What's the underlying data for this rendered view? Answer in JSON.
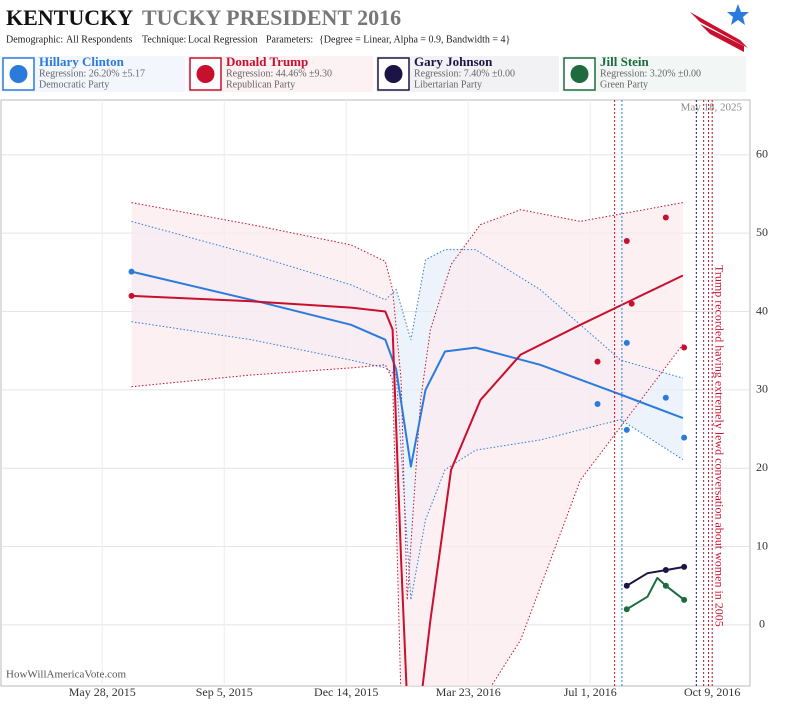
{
  "header": {
    "title_bold": "KENTUCKY",
    "title_rest": "TUCKY PRESIDENT 2016",
    "params": [
      {
        "label": "Demographic:",
        "value": "All Respondents"
      },
      {
        "label": "Technique:",
        "value": "Local Regression"
      },
      {
        "label": "Parameters:",
        "value": "{Degree = Linear, Alpha = 0.9, Bandwidth = 4}"
      }
    ]
  },
  "date_stamp": "May 18, 2025",
  "footer": "HowWillAmericaVote.com",
  "chart_data": {
    "type": "line",
    "xlim": [
      "2015-03-06",
      "2016-11-09"
    ],
    "xticks": [
      {
        "value": "2015-05-28",
        "label": "May 28, 2015"
      },
      {
        "value": "2015-09-05",
        "label": "Sep 5, 2015"
      },
      {
        "value": "2015-12-14",
        "label": "Dec 14, 2015"
      },
      {
        "value": "2016-03-23",
        "label": "Mar 23, 2016"
      },
      {
        "value": "2016-07-01",
        "label": "Jul 1, 2016"
      },
      {
        "value": "2016-10-09",
        "label": "Oct 9, 2016"
      }
    ],
    "ylim": [
      -7.8,
      67
    ],
    "yticks": [
      0,
      10,
      20,
      30,
      40,
      50,
      60
    ],
    "grid": true,
    "series": [
      {
        "name": "Hillary Clinton",
        "regression": "Regression: 26.20% ±5.17",
        "party": "Democratic Party",
        "color": "#2b7bdc",
        "band_color": "#e6eef9",
        "x": [
          "2015-06-21",
          "2015-09-27",
          "2015-12-18",
          "2016-01-15",
          "2016-01-24",
          "2016-02-05",
          "2016-02-17",
          "2016-03-04",
          "2016-03-29",
          "2016-05-21",
          "2016-07-26",
          "2016-09-15"
        ],
        "values": [
          45.1,
          41.5,
          38.3,
          36.4,
          32.6,
          20.2,
          30.0,
          34.9,
          35.4,
          33.2,
          29.4,
          26.4
        ],
        "upper": [
          51.5,
          47.3,
          43.4,
          41.5,
          42.8,
          36.4,
          46.6,
          47.9,
          47.9,
          42.8,
          33.8,
          31.5
        ],
        "lower": [
          38.7,
          36.4,
          33.8,
          32.8,
          31.9,
          3.2,
          13.4,
          19.8,
          22.3,
          23.6,
          26.2,
          21.1
        ],
        "polls": {
          "x": [
            "2015-06-21",
            "2016-07-07",
            "2016-07-31",
            "2016-07-31",
            "2016-09-01",
            "2016-09-16"
          ],
          "values": [
            45.1,
            28.2,
            24.9,
            36.0,
            29.0,
            23.9
          ]
        }
      },
      {
        "name": "Donald Trump",
        "regression": "Regression: 44.46% ±9.30",
        "party": "Republican Party",
        "color": "#c8102e",
        "band_color": "#fbe9ee",
        "x": [
          "2015-06-21",
          "2015-09-27",
          "2015-12-18",
          "2016-01-15",
          "2016-01-21",
          "2016-01-28",
          "2016-02-02",
          "2016-02-13",
          "2016-02-21",
          "2016-03-09",
          "2016-04-02",
          "2016-05-05",
          "2016-06-23",
          "2016-09-15"
        ],
        "values": [
          42.0,
          41.3,
          40.5,
          40.0,
          37.7,
          8.3,
          -10,
          -10,
          0.6,
          19.8,
          28.7,
          34.5,
          38.3,
          44.6
        ],
        "upper": [
          53.9,
          51.1,
          48.5,
          46.4,
          42.8,
          31.3,
          3.2,
          28.7,
          37.7,
          46.0,
          51.1,
          53.0,
          51.5,
          53.9
        ],
        "lower": [
          30.4,
          31.9,
          32.8,
          33.2,
          31.3,
          -10,
          -10,
          -10,
          -10,
          -10,
          -10,
          -1.9,
          18.5,
          35.8
        ],
        "polls": {
          "x": [
            "2015-06-21",
            "2016-07-07",
            "2016-07-31",
            "2016-08-04",
            "2016-09-01",
            "2016-09-16"
          ],
          "values": [
            42.0,
            33.6,
            49.0,
            41.0,
            52.0,
            35.4
          ]
        }
      },
      {
        "name": "Gary Johnson",
        "regression": "Regression: 7.40% ±0.00",
        "party": "Libertarian Party",
        "color": "#1c1446",
        "x": [
          "2016-07-31",
          "2016-08-17",
          "2016-09-01",
          "2016-09-16"
        ],
        "values": [
          5.0,
          6.6,
          7.0,
          7.4
        ],
        "polls": {
          "x": [
            "2016-07-31",
            "2016-09-01",
            "2016-09-16"
          ],
          "values": [
            5.0,
            7.0,
            7.4
          ]
        }
      },
      {
        "name": "Jill Stein",
        "regression": "Regression: 3.20% ±0.00",
        "party": "Green Party",
        "color": "#1e6b3f",
        "x": [
          "2016-07-31",
          "2016-08-17",
          "2016-08-25",
          "2016-09-01",
          "2016-09-16"
        ],
        "values": [
          2.0,
          3.6,
          6.0,
          5.0,
          3.2
        ],
        "polls": {
          "x": [
            "2016-07-31",
            "2016-09-01",
            "2016-09-16"
          ],
          "values": [
            2.0,
            5.0,
            3.2
          ]
        }
      }
    ],
    "events": [
      {
        "x": "2016-07-21",
        "color": "#c8102e"
      },
      {
        "x": "2016-07-27",
        "color": "#2b7bdc"
      },
      {
        "x": "2016-09-26",
        "color": "#1c1446"
      },
      {
        "x": "2016-10-02",
        "color": "#c8102e"
      },
      {
        "x": "2016-10-06",
        "color": "#c8102e"
      },
      {
        "x": "2016-10-09",
        "color": "#c8102e",
        "label": "Trump recorded having extremely lewd conversation about women in 2005"
      }
    ]
  }
}
